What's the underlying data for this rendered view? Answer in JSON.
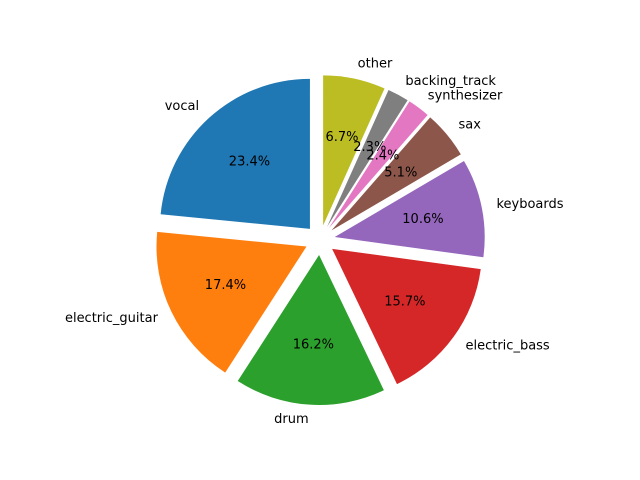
{
  "chart_data": {
    "type": "pie",
    "title": "",
    "start_angle_deg": 90,
    "direction": "counterclockwise",
    "slices": [
      {
        "label": "vocal",
        "value": 23.4,
        "pct_label": "23.4%",
        "color": "#1f77b4"
      },
      {
        "label": "electric_guitar",
        "value": 17.4,
        "pct_label": "17.4%",
        "color": "#ff7f0e"
      },
      {
        "label": "drum",
        "value": 16.2,
        "pct_label": "16.2%",
        "color": "#2ca02c"
      },
      {
        "label": "electric_bass",
        "value": 15.7,
        "pct_label": "15.7%",
        "color": "#d62728"
      },
      {
        "label": "keyboards",
        "value": 10.6,
        "pct_label": "10.6%",
        "color": "#9467bd"
      },
      {
        "label": "sax",
        "value": 5.1,
        "pct_label": "5.1%",
        "color": "#8c564b"
      },
      {
        "label": "synthesizer",
        "value": 2.4,
        "pct_label": "2.4%",
        "color": "#e377c2"
      },
      {
        "label": "backing_track",
        "value": 2.3,
        "pct_label": "2.3%",
        "color": "#7f7f7f"
      },
      {
        "label": "other",
        "value": 6.7,
        "pct_label": "6.7%",
        "color": "#bcbd22"
      }
    ]
  }
}
